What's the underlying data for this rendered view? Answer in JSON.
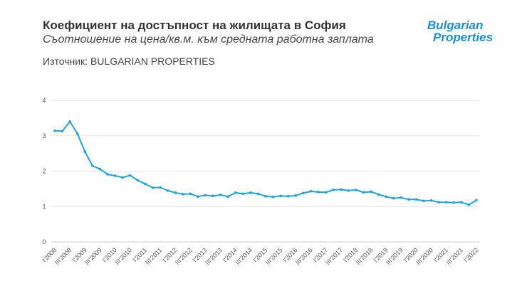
{
  "header": {
    "title": "Коефициент на достъпност на жилищата в София",
    "subtitle": "Съотношение на цена/кв.м. към средната работна заплата",
    "source": "Източник: BULGARIAN PROPERTIES",
    "logo_text": "Bulgarian Properties"
  },
  "colors": {
    "line": "#1ea3e0",
    "grid": "#e6e6e6",
    "logo": "#1a8fd6"
  },
  "chart_data": {
    "type": "line",
    "title": "Коефициент на достъпност на жилищата в София",
    "subtitle": "Съотношение на цена/кв.м. към средната работна заплата",
    "xlabel": "",
    "ylabel": "",
    "ylim": [
      0,
      4
    ],
    "yticks": [
      "0",
      "1",
      "2",
      "3",
      "4"
    ],
    "grid": true,
    "x": [
      "I'2008",
      "II'2008",
      "III'2008",
      "IV'2008",
      "I'2009",
      "II'2009",
      "III'2009",
      "IV'2009",
      "I'2010",
      "II'2010",
      "III'2010",
      "IV'2010",
      "I'2011",
      "II'2011",
      "III'2011",
      "IV'2011",
      "I'2012",
      "II'2012",
      "III'2012",
      "IV'2012",
      "I'2013",
      "II'2013",
      "III'2013",
      "IV'2013",
      "I'2014",
      "II'2014",
      "III'2014",
      "IV'2014",
      "I'2015",
      "II'2015",
      "III'2015",
      "IV'2015",
      "I'2016",
      "II'2016",
      "III'2016",
      "IV'2016",
      "I'2017",
      "II'2017",
      "III'2017",
      "IV'2017",
      "I'2018",
      "II'2018",
      "III'2018",
      "IV'2018",
      "I'2019",
      "II'2019",
      "III'2019",
      "IV'2019",
      "I'2020",
      "II'2020",
      "III'2020",
      "IV'2020",
      "I'2021",
      "II'2021",
      "III'2021",
      "IV'2021",
      "I'2022"
    ],
    "xtick_labels": [
      "I'2008",
      "III'2008",
      "I'2009",
      "III'2009",
      "I'2010",
      "III'2010",
      "I'2011",
      "III'2011",
      "I'2012",
      "III'2012",
      "I'2013",
      "III'2013",
      "I'2014",
      "III'2014",
      "I'2015",
      "III'2015",
      "I'2016",
      "III'2016",
      "I'2017",
      "III'2017",
      "I'2018",
      "III'2018",
      "I'2019",
      "III'2019",
      "I'2020",
      "III'2020",
      "I'2021",
      "III'2021",
      "I'2022"
    ],
    "values": [
      3.14,
      3.13,
      3.4,
      3.06,
      2.55,
      2.15,
      2.06,
      1.91,
      1.87,
      1.82,
      1.88,
      1.74,
      1.64,
      1.53,
      1.54,
      1.45,
      1.39,
      1.35,
      1.36,
      1.28,
      1.32,
      1.3,
      1.33,
      1.28,
      1.39,
      1.36,
      1.39,
      1.36,
      1.29,
      1.27,
      1.3,
      1.29,
      1.31,
      1.38,
      1.43,
      1.41,
      1.4,
      1.47,
      1.48,
      1.45,
      1.47,
      1.4,
      1.42,
      1.34,
      1.28,
      1.23,
      1.25,
      1.2,
      1.2,
      1.16,
      1.17,
      1.12,
      1.12,
      1.11,
      1.12,
      1.05,
      1.18
    ]
  }
}
